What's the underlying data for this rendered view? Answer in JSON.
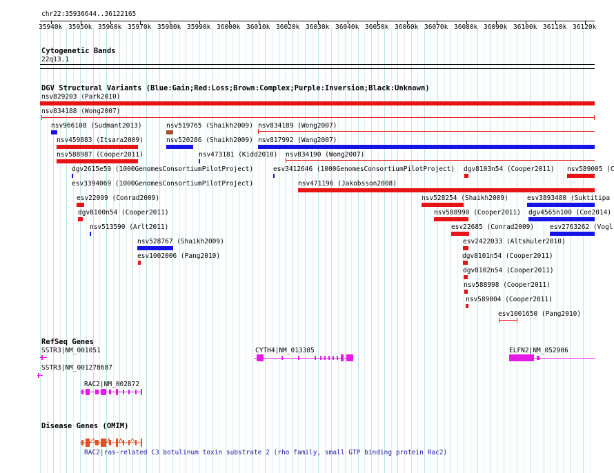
{
  "locus": "chr22:35936644..36122165",
  "ruler": {
    "ticks": [
      "35940k",
      "35950k",
      "35960k",
      "35970k",
      "35980k",
      "35990k",
      "36000k",
      "36010k",
      "36020k",
      "36030k",
      "36040k",
      "36050k",
      "36060k",
      "36070k",
      "36080k",
      "36090k",
      "36100k",
      "36110k",
      "36120k"
    ]
  },
  "cytoband": {
    "title": "Cytogenetic Bands",
    "band": "22q13.1"
  },
  "dgv": {
    "title": "DGV Structural Variants (Blue:Gain;Red:Loss;Brown:Complex;Purple:Inversion;Black:Unknown)",
    "colors": {
      "gain": "#1414e6",
      "loss": "#e61414",
      "complex": "#a0522d"
    },
    "variants": [
      "nsv829203 (Park2010)",
      "nsv834188 (Wong2007)",
      "nsv966108 (Sudmant2013)",
      "nsv519765 (Shaikh2009)",
      "nsv834189 (Wong2007)",
      "nsv459883 (Itsara2009)",
      "nsv520286 (Shaikh2009)",
      "nsv817992 (Wang2007)",
      "nsv588987 (Cooper2011)",
      "nsv473181 (Kidd2010)",
      "nsv834190 (Wong2007)",
      "dgv2615e59 (1000GenomesConsortiumPilotProject)",
      "esv3412646 (1000GenomesConsortiumPilotProject)",
      "dgv8103n54 (Cooper2011)",
      "nsv589005 (C",
      "esv3394069 (1000GenomesConsortiumPilotProject)",
      "nsv471196 (Jakobsson2008)",
      "esv22099 (Conrad2009)",
      "nsv528254 (Shaikh2009)",
      "esv3893480 (Suktitipa",
      "dgv8100n54 (Cooper2011)",
      "nsv588990 (Cooper2011)",
      "dgv4565n100 (Coe2014)",
      "nsv513590 (Arlt2011)",
      "esv22685 (Conrad2009)",
      "esv2763262 (Vogl",
      "nsv528767 (Shaikh2009)",
      "esv2422033 (Altshuler2010)",
      "esv1002006 (Pang2010)",
      "dgv8101n54 (Cooper2011)",
      "dgv8102n54 (Cooper2011)",
      "nsv588998 (Cooper2011)",
      "nsv589004 (Cooper2011)",
      "esv1001650 (Pang2010)"
    ]
  },
  "refseq": {
    "title": "RefSeq Genes",
    "color": "#e619e6",
    "genes": [
      "SSTR3|NM_001051",
      "SSTR3|NM_001278687",
      "RAC2|NM_002872",
      "CYTH4|NM_013385",
      "ELFN2|NM_052906"
    ]
  },
  "omim": {
    "title": "Disease Genes (OMIM)",
    "color": "#e6501e",
    "label": "RAC2|ras-related C3 botulinum toxin substrate 2 (rho family, small GTP binding protein Rac2)"
  }
}
